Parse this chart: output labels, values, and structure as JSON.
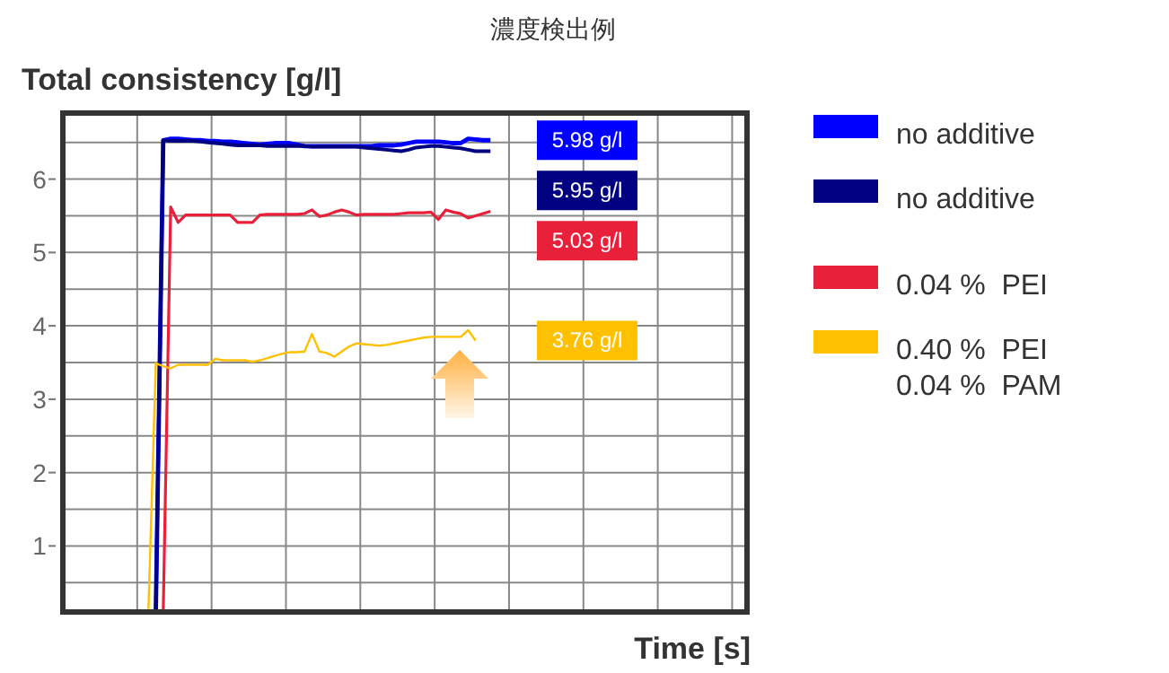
{
  "chart_data": {
    "type": "line",
    "title": "濃度検出例",
    "xlabel": "Time [s]",
    "ylabel": "Total consistency [g/l]",
    "categories": [
      null,
      null,
      null,
      null,
      null,
      null,
      null,
      null,
      null,
      null,
      null,
      null,
      null,
      null,
      null,
      null,
      null,
      null,
      null,
      null,
      null,
      null,
      null,
      null,
      null,
      null,
      null,
      null,
      null,
      null,
      null,
      null,
      null,
      null,
      null,
      null,
      null,
      null,
      null,
      null,
      null,
      null,
      null,
      null,
      null,
      null,
      null,
      null,
      null,
      null,
      null,
      null,
      null,
      null,
      null,
      null,
      null,
      null,
      null,
      null,
      null,
      null,
      null,
      null,
      null,
      null,
      null,
      null,
      null,
      null,
      null,
      null,
      null,
      null,
      null,
      null,
      null,
      null,
      null,
      null,
      null,
      null,
      null,
      null,
      null,
      null,
      null,
      null,
      null,
      null,
      null,
      null
    ],
    "ylim": [
      0.1,
      6.9
    ],
    "yticks": [
      {
        "value": 0.5,
        "label": null
      },
      1,
      {
        "value": 1.5,
        "label": null
      },
      2,
      {
        "value": 2.5,
        "label": null
      },
      3,
      {
        "value": 3.5,
        "label": null
      },
      4,
      {
        "value": 4.5,
        "label": null
      },
      5,
      {
        "value": 5.5,
        "label": null
      },
      6,
      {
        "value": 6.5,
        "label": null
      }
    ],
    "tick_labels": "y",
    "grid": true,
    "legend": "right",
    "marker": "none",
    "line_style": "solid",
    "annotations": [
      "5.98 g/l",
      "5.95 g/l",
      "5.03 g/l",
      "3.76 g/l"
    ],
    "series": [
      {
        "name": "no additive",
        "color": "#0000ff",
        "values": [
          null,
          null,
          null,
          null,
          null,
          null,
          null,
          null,
          null,
          null,
          null,
          null,
          0.1,
          6.53,
          6.55,
          6.55,
          6.54,
          6.53,
          6.53,
          6.52,
          6.52,
          6.51,
          6.51,
          6.5,
          6.49,
          6.48,
          6.47,
          6.48,
          6.49,
          6.49,
          6.49,
          6.47,
          6.45,
          6.45,
          6.45,
          6.45,
          6.45,
          6.45,
          6.45,
          6.45,
          6.45,
          6.45,
          6.46,
          6.46,
          6.46,
          6.47,
          6.49,
          6.51,
          6.51,
          6.51,
          6.51,
          6.5,
          6.49,
          6.49,
          6.55,
          6.54,
          6.53,
          6.53,
          null,
          null,
          null,
          null,
          null,
          null,
          null,
          null,
          null,
          null,
          null,
          null,
          null,
          null,
          null,
          null,
          null,
          null,
          null,
          null,
          null,
          null,
          null,
          null,
          null,
          null,
          null,
          null,
          null,
          null,
          null,
          null,
          null,
          null
        ]
      },
      {
        "name": "no additive",
        "color": "#000080",
        "values": [
          null,
          null,
          null,
          null,
          null,
          null,
          null,
          null,
          null,
          null,
          null,
          null,
          0.1,
          6.53,
          6.52,
          6.52,
          6.52,
          6.52,
          6.51,
          6.5,
          6.49,
          6.48,
          6.47,
          6.46,
          6.46,
          6.46,
          6.46,
          6.45,
          6.45,
          6.45,
          6.45,
          6.45,
          6.45,
          6.44,
          6.44,
          6.44,
          6.44,
          6.44,
          6.44,
          6.44,
          6.43,
          6.42,
          6.41,
          6.4,
          6.39,
          6.38,
          6.4,
          6.43,
          6.44,
          6.45,
          6.45,
          6.44,
          6.43,
          6.42,
          6.4,
          6.38,
          6.38,
          6.38,
          null,
          null,
          null,
          null,
          null,
          null,
          null,
          null,
          null,
          null,
          null,
          null,
          null,
          null,
          null,
          null,
          null,
          null,
          null,
          null,
          null,
          null,
          null,
          null,
          null,
          null,
          null,
          null,
          null,
          null,
          null,
          null,
          null,
          null
        ]
      },
      {
        "name": "0.04 %  PEI",
        "color": "#e8203a",
        "values": [
          null,
          null,
          null,
          null,
          null,
          null,
          null,
          null,
          null,
          null,
          null,
          null,
          null,
          0.1,
          5.62,
          5.41,
          5.51,
          5.51,
          5.51,
          5.51,
          5.51,
          5.51,
          5.51,
          5.41,
          5.41,
          5.41,
          5.51,
          5.52,
          5.52,
          5.52,
          5.52,
          5.52,
          5.53,
          5.58,
          5.49,
          5.51,
          5.55,
          5.58,
          5.55,
          5.51,
          5.52,
          5.52,
          5.52,
          5.52,
          5.52,
          5.53,
          5.54,
          5.54,
          5.54,
          5.55,
          5.45,
          5.58,
          5.55,
          5.53,
          5.47,
          5.5,
          5.53,
          5.56,
          null,
          null,
          null,
          null,
          null,
          null,
          null,
          null,
          null,
          null,
          null,
          null,
          null,
          null,
          null,
          null,
          null,
          null,
          null,
          null,
          null,
          null,
          null,
          null,
          null,
          null,
          null,
          null,
          null,
          null,
          null,
          null,
          null,
          null
        ]
      },
      {
        "name": "0.40 %  PEI\n0.04 %  PAM",
        "color": "#ffc000",
        "values": [
          null,
          null,
          null,
          null,
          null,
          null,
          null,
          null,
          null,
          null,
          null,
          0.1,
          3.49,
          3.45,
          3.42,
          3.47,
          3.47,
          3.47,
          3.47,
          3.47,
          3.55,
          3.53,
          3.53,
          3.53,
          3.53,
          3.51,
          3.53,
          3.56,
          3.59,
          3.62,
          3.64,
          3.64,
          3.65,
          3.89,
          3.65,
          3.63,
          3.58,
          3.65,
          3.72,
          3.76,
          3.75,
          3.74,
          3.73,
          3.74,
          3.76,
          3.78,
          3.8,
          3.82,
          3.84,
          3.85,
          3.85,
          3.85,
          3.85,
          3.85,
          3.94,
          3.8,
          null,
          null,
          null,
          null,
          null,
          null,
          null,
          null,
          null,
          null,
          null,
          null,
          null,
          null,
          null,
          null,
          null,
          null,
          null,
          null,
          null,
          null,
          null,
          null,
          null,
          null,
          null,
          null,
          null,
          null,
          null,
          null,
          null,
          null,
          null,
          null
        ]
      }
    ]
  }
}
